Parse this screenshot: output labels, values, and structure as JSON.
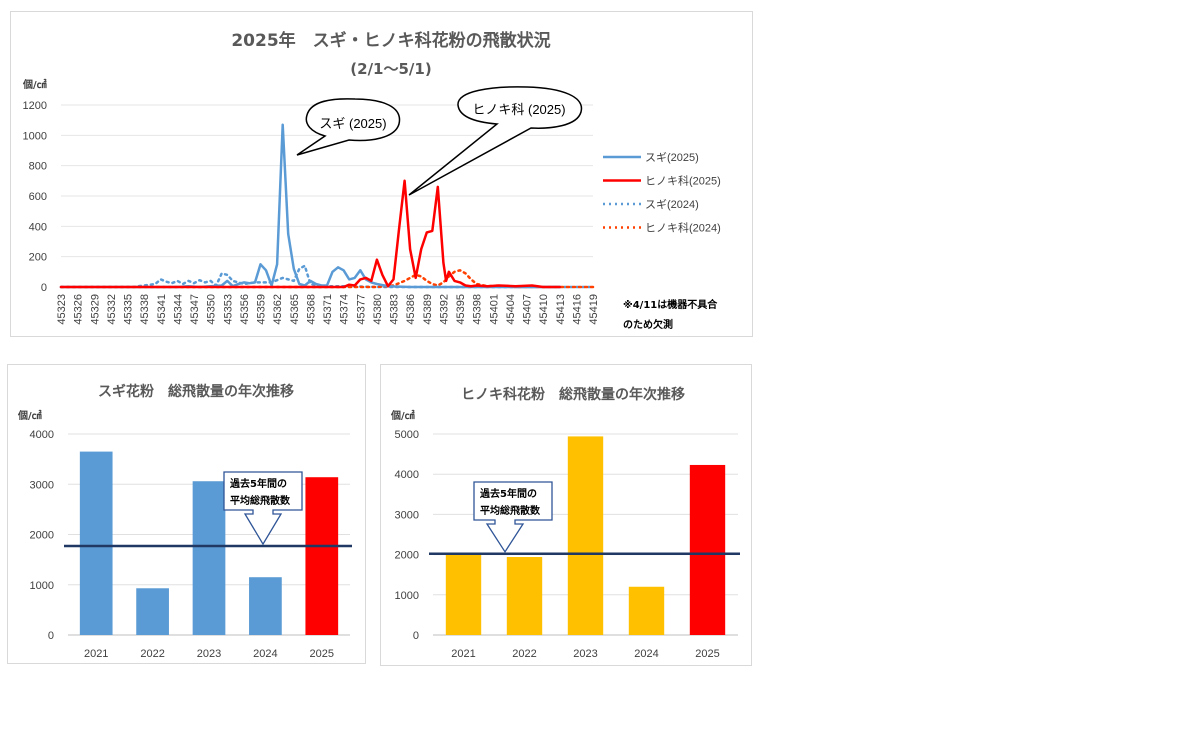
{
  "main_chart": {
    "title": "2025年　スギ・ヒノキ科花粉の飛散状況",
    "subtitle": "(2/1〜5/1)",
    "unit": "個/㎠",
    "note_line1": "※4/11は機器不具合",
    "note_line2": "のため欠測",
    "bubble_sugi": "スギ (2025)",
    "bubble_hinoki": "ヒノキ科 (2025)",
    "colors": {
      "sugi": "#5b9bd5",
      "hinoki": "#ff0000",
      "sugi_prev": "#5b9bd5",
      "hinoki_prev": "#ff4000"
    }
  },
  "chart_data": [
    {
      "type": "line",
      "title": "2025年　スギ・ヒノキ科花粉の飛散状況",
      "subtitle": "(2/1〜5/1)",
      "ylabel": "個/㎠",
      "ylim": [
        0,
        1200
      ],
      "yticks": [
        0,
        200,
        400,
        600,
        800,
        1000,
        1200
      ],
      "x_start": 45323,
      "x_end": 45419,
      "xticks": [
        45323,
        45326,
        45329,
        45332,
        45335,
        45338,
        45341,
        45344,
        45347,
        45350,
        45353,
        45356,
        45359,
        45362,
        45365,
        45368,
        45371,
        45374,
        45377,
        45380,
        45383,
        45386,
        45389,
        45392,
        45395,
        45398,
        45401,
        45404,
        45407,
        45410,
        45413,
        45416,
        45419
      ],
      "grid": true,
      "legend_position": "right",
      "series": [
        {
          "name": "スギ(2025)",
          "style": "solid",
          "x": [
            45323,
            45340,
            45344,
            45346,
            45348,
            45350,
            45352,
            45353,
            45354,
            45355,
            45356,
            45357,
            45358,
            45359,
            45360,
            45361,
            45362,
            45363,
            45364,
            45365,
            45366,
            45367,
            45368,
            45369,
            45370,
            45371,
            45372,
            45373,
            45374,
            45375,
            45376,
            45377,
            45378,
            45379,
            45380,
            45382,
            45386,
            45413
          ],
          "y": [
            0,
            0,
            0,
            5,
            0,
            5,
            10,
            40,
            5,
            20,
            30,
            25,
            30,
            150,
            110,
            10,
            150,
            1070,
            350,
            120,
            20,
            10,
            40,
            20,
            10,
            10,
            100,
            130,
            110,
            50,
            60,
            110,
            50,
            30,
            20,
            5,
            0,
            0
          ]
        },
        {
          "name": "ヒノキ科(2025)",
          "style": "solid",
          "x": [
            45323,
            45374,
            45375,
            45376,
            45377,
            45378,
            45379,
            45380,
            45381,
            45382,
            45383,
            45384,
            45385,
            45386,
            45387,
            45388,
            45389,
            45390,
            45391,
            45392,
            45392.5,
            45393,
            45394,
            45395,
            45396,
            45397,
            45398,
            45400,
            45402,
            45405,
            45408,
            45410,
            45413
          ],
          "y": [
            0,
            0,
            15,
            10,
            50,
            60,
            40,
            180,
            80,
            5,
            50,
            380,
            700,
            250,
            60,
            250,
            360,
            370,
            660,
            160,
            40,
            100,
            40,
            30,
            10,
            5,
            10,
            5,
            10,
            5,
            10,
            0,
            0
          ]
        },
        {
          "name": "スギ(2024)",
          "style": "dotted",
          "x": [
            45323,
            45336,
            45337,
            45340,
            45341,
            45342,
            45343,
            45344,
            45345,
            45346,
            45347,
            45348,
            45349,
            45350,
            45351,
            45352,
            45353,
            45354,
            45356,
            45358,
            45361,
            45363,
            45365,
            45366,
            45367,
            45368,
            45370,
            45375,
            45380,
            45390,
            45419
          ],
          "y": [
            0,
            0,
            5,
            20,
            50,
            35,
            25,
            40,
            20,
            40,
            25,
            45,
            30,
            40,
            10,
            90,
            80,
            40,
            20,
            30,
            30,
            60,
            40,
            120,
            140,
            20,
            5,
            5,
            0,
            0,
            0
          ]
        },
        {
          "name": "ヒノキ科(2024)",
          "style": "dotted",
          "x": [
            45323,
            45380,
            45383,
            45385,
            45386,
            45387,
            45388,
            45389,
            45390,
            45391,
            45392,
            45393,
            45394,
            45395,
            45396,
            45397,
            45398,
            45400,
            45402,
            45405,
            45410,
            45419
          ],
          "y": [
            0,
            0,
            10,
            40,
            60,
            80,
            70,
            40,
            20,
            10,
            30,
            70,
            100,
            110,
            90,
            50,
            20,
            5,
            10,
            0,
            0,
            0
          ]
        }
      ]
    },
    {
      "type": "bar",
      "title": "スギ花粉　総飛散量の年次推移",
      "ylabel": "個/㎠",
      "categories": [
        "2021",
        "2022",
        "2023",
        "2024",
        "2025"
      ],
      "values": [
        3650,
        930,
        3060,
        1150,
        3140
      ],
      "colors": [
        "#5b9bd5",
        "#5b9bd5",
        "#5b9bd5",
        "#5b9bd5",
        "#ff0000"
      ],
      "ylim": [
        0,
        4000
      ],
      "yticks": [
        0,
        1000,
        2000,
        3000,
        4000
      ],
      "average_line": 1770,
      "average_color": "#1f3864",
      "callout": [
        "過去5年間の",
        "平均総飛散数"
      ]
    },
    {
      "type": "bar",
      "title": "ヒノキ科花粉　総飛散量の年次推移",
      "ylabel": "個/㎠",
      "categories": [
        "2021",
        "2022",
        "2023",
        "2024",
        "2025"
      ],
      "values": [
        1990,
        1940,
        4940,
        1200,
        4230
      ],
      "colors": [
        "#ffc000",
        "#ffc000",
        "#ffc000",
        "#ffc000",
        "#ff0000"
      ],
      "ylim": [
        0,
        5000
      ],
      "yticks": [
        0,
        1000,
        2000,
        3000,
        4000,
        5000
      ],
      "average_line": 2020,
      "average_color": "#1f3864",
      "callout": [
        "過去5年間の",
        "平均総飛散数"
      ]
    }
  ]
}
